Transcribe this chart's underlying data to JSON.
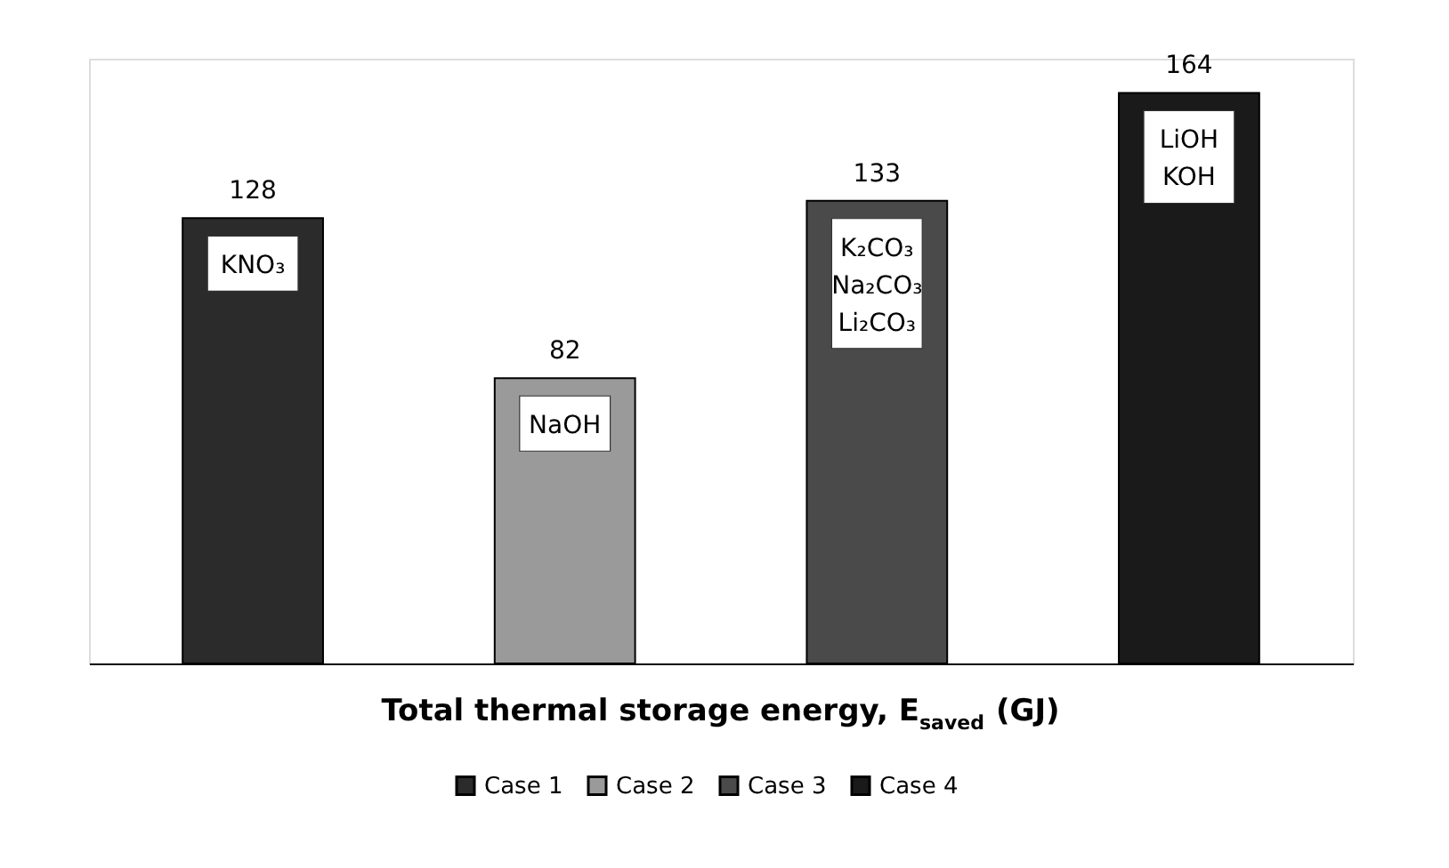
{
  "chart_data": {
    "type": "bar",
    "stacked": true,
    "xlabel": "Total thermal storage energy, E$_{saved}$ (GJ)",
    "categories": [
      null,
      null,
      null,
      null
    ],
    "series": [
      {
        "name": "Case 1",
        "color": "#2b2b2b",
        "values": [
          128,
          null,
          null,
          null
        ]
      },
      {
        "name": "Case 2",
        "color": "#9a9a9a",
        "values": [
          null,
          82,
          null,
          null
        ]
      },
      {
        "name": "Case 3",
        "color": "#4a4a4a",
        "values": [
          null,
          null,
          133,
          null
        ]
      },
      {
        "name": "Case 4",
        "color": "#1a1a1a",
        "values": [
          null,
          null,
          null,
          164
        ]
      }
    ],
    "data_labels": true,
    "legend": "bottom",
    "grid": false,
    "annotations": [
      "KNO₃",
      "NaOH",
      "K₂CO₃\nNa₂CO₃\nLi₂CO₃",
      "LiOH\nKOH"
    ]
  }
}
